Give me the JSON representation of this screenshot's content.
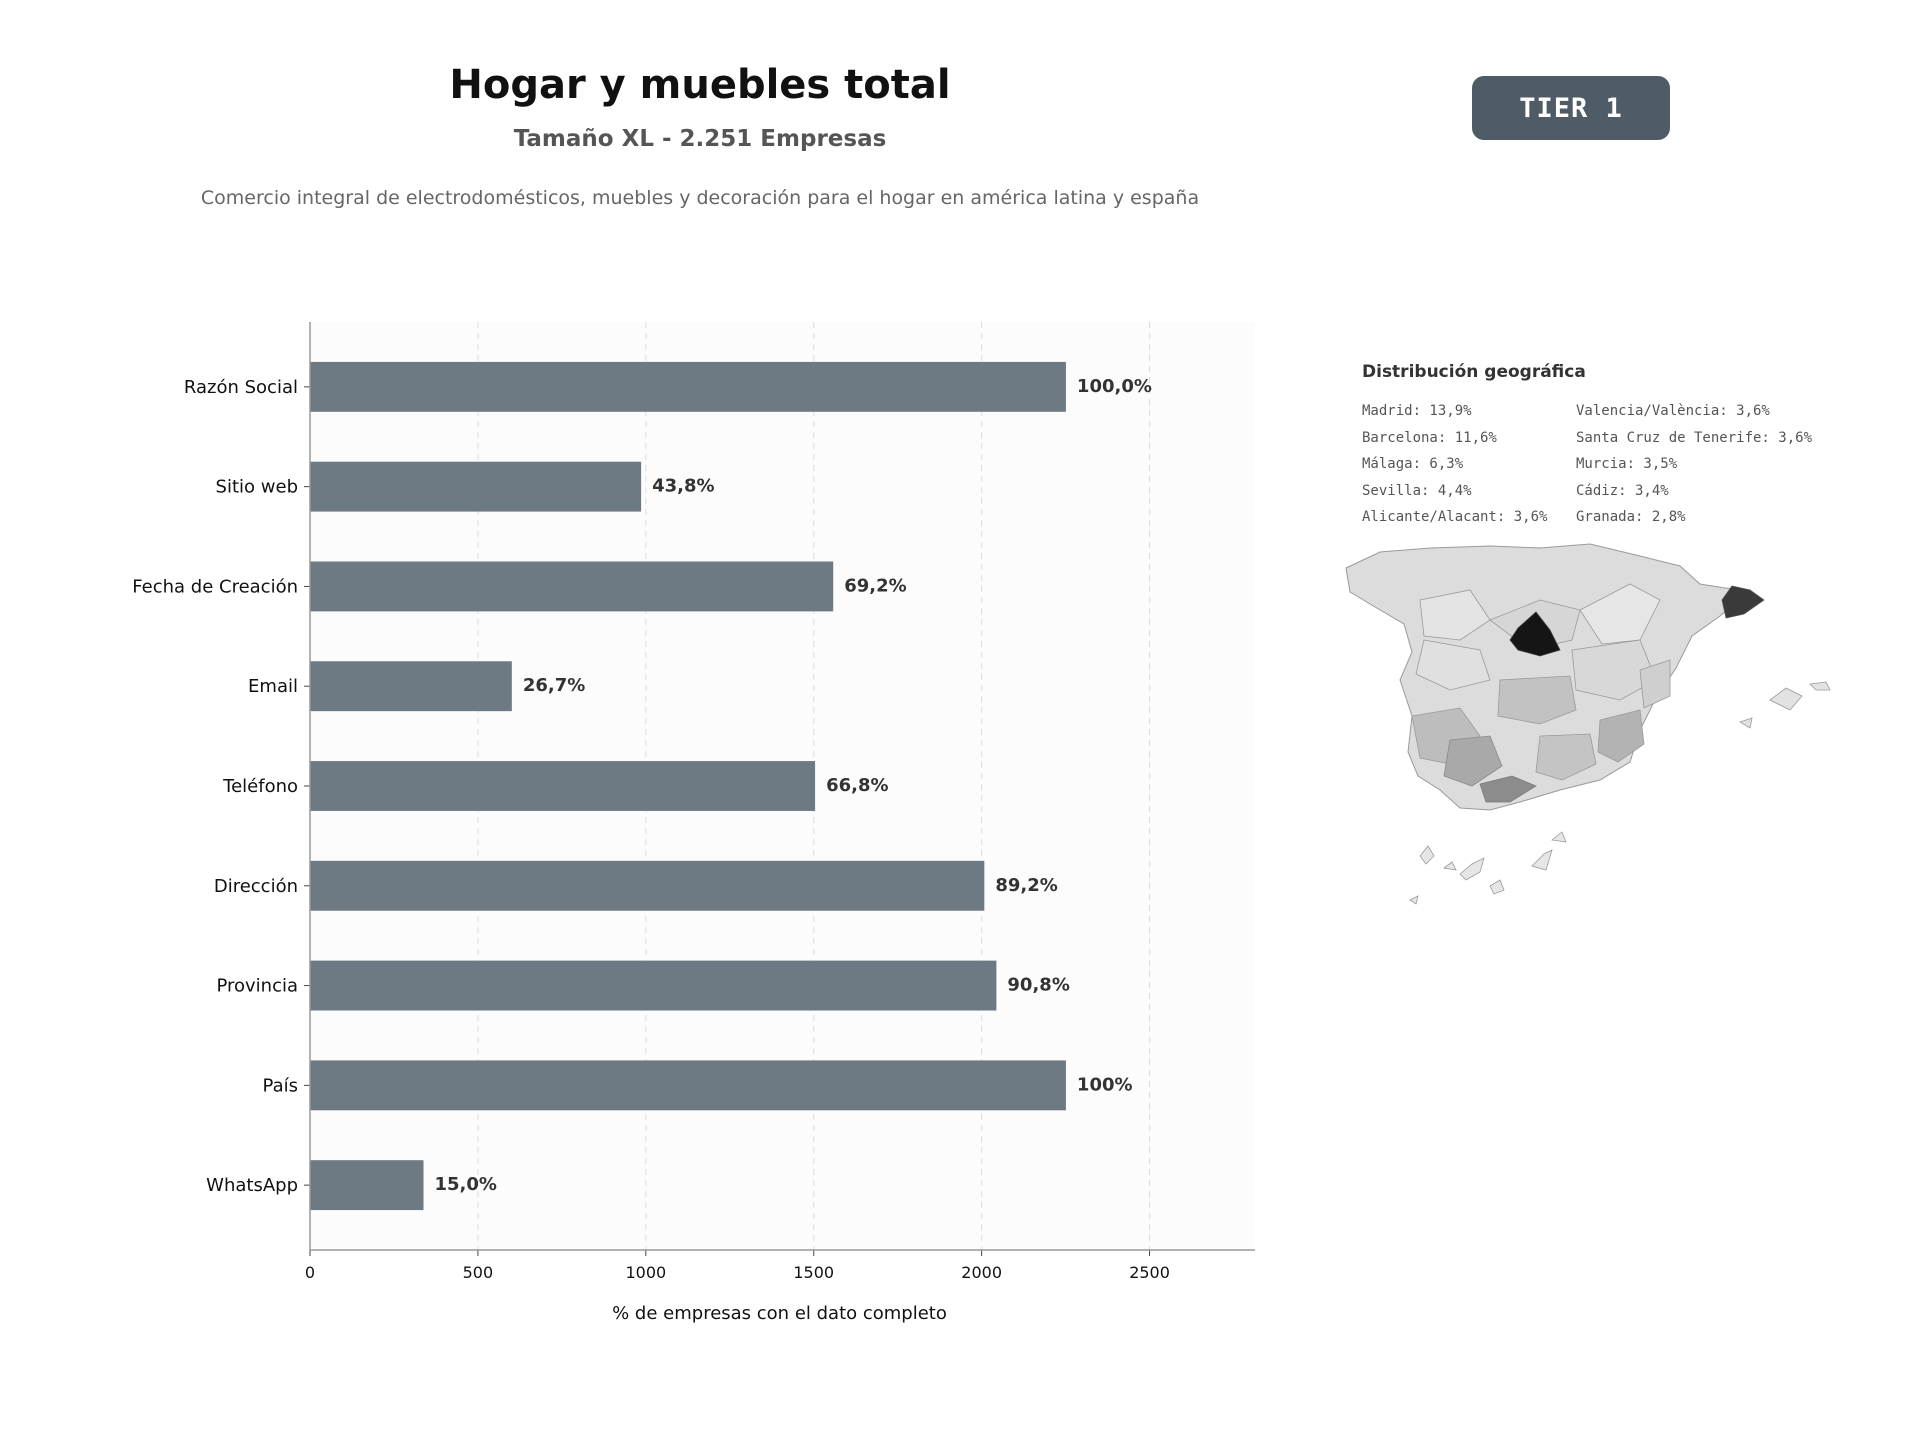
{
  "header": {
    "title": "Hogar y muebles total",
    "subtitle": "Tamaño XL - 2.251 Empresas",
    "description": "Comercio integral de electrodomésticos, muebles y decoración para el hogar en américa latina y españa",
    "tier_label": "TIER 1"
  },
  "chart_data": {
    "type": "bar",
    "orientation": "horizontal",
    "categories": [
      "Razón Social",
      "Sitio web",
      "Fecha de Creación",
      "Email",
      "Teléfono",
      "Dirección",
      "Provincia",
      "País",
      "WhatsApp"
    ],
    "values": [
      2251,
      986,
      1558,
      601,
      1504,
      2008,
      2044,
      2251,
      338
    ],
    "data_labels": [
      "100,0%",
      "43,8%",
      "69,2%",
      "26,7%",
      "66,8%",
      "89,2%",
      "90,8%",
      "100%",
      "15,0%"
    ],
    "xlabel": "% de empresas con el dato completo",
    "ylabel": "",
    "xlim": [
      0,
      2814
    ],
    "xticks": [
      0,
      500,
      1000,
      1500,
      2000,
      2500
    ],
    "grid": "vertical-dashed",
    "bar_color": "#6e7a83"
  },
  "geo": {
    "title": "Distribución geográfica",
    "items": [
      "Madrid: 13,9%",
      "Barcelona: 11,6%",
      "Málaga: 6,3%",
      "Sevilla: 4,4%",
      "Alicante/Alacant: 3,6%",
      "Valencia/València: 3,6%",
      "Santa Cruz de Tenerife: 3,6%",
      "Murcia: 3,5%",
      "Cádiz: 3,4%",
      "Granada: 2,8%"
    ]
  }
}
